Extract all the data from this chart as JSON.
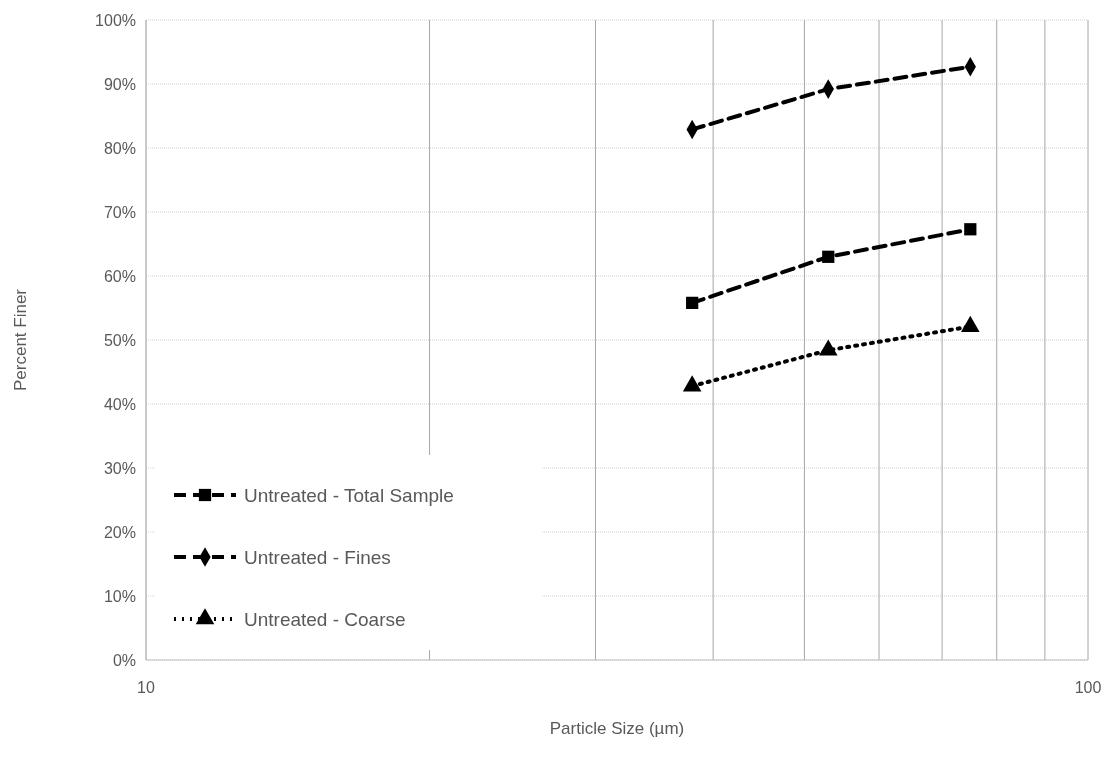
{
  "chart_data": {
    "type": "line",
    "xlabel": "Particle Size (µm)",
    "ylabel": "Percent Finer",
    "log": "x",
    "grid": true,
    "legend": "bottom left",
    "xlim": [
      10,
      100
    ],
    "xticks": [
      10,
      {
        "value": 20,
        "label": null
      },
      {
        "value": 30,
        "label": null
      },
      {
        "value": 40,
        "label": null
      },
      {
        "value": 50,
        "label": null
      },
      {
        "value": 60,
        "label": null
      },
      {
        "value": 70,
        "label": null
      },
      {
        "value": 80,
        "label": null
      },
      {
        "value": 90,
        "label": null
      },
      100
    ],
    "ylim": [
      0,
      100
    ],
    "yticks": [
      {
        "value": 0,
        "label": "0%"
      },
      {
        "value": 10,
        "label": "10%"
      },
      {
        "value": 20,
        "label": "20%"
      },
      {
        "value": 30,
        "label": "30%"
      },
      {
        "value": 40,
        "label": "40%"
      },
      {
        "value": 50,
        "label": "50%"
      },
      {
        "value": 60,
        "label": "60%"
      },
      {
        "value": 70,
        "label": "70%"
      },
      {
        "value": 80,
        "label": "80%"
      },
      {
        "value": 90,
        "label": "90%"
      },
      {
        "value": 100,
        "label": "100%"
      }
    ],
    "x": [
      38,
      53,
      75
    ],
    "series": [
      {
        "name": "Untreated - Total Sample",
        "color": "#000000",
        "marker": "square",
        "line_style": "dashed",
        "values": [
          55.8,
          63.0,
          67.3
        ]
      },
      {
        "name": "Untreated - Fines",
        "color": "#000000",
        "marker": "diamond",
        "line_style": "dashed",
        "values": [
          82.9,
          89.2,
          92.7
        ]
      },
      {
        "name": "Untreated - Coarse",
        "color": "#000000",
        "marker": "triangle",
        "line_style": "dotted",
        "values": [
          42.8,
          48.4,
          52.1
        ]
      }
    ]
  }
}
